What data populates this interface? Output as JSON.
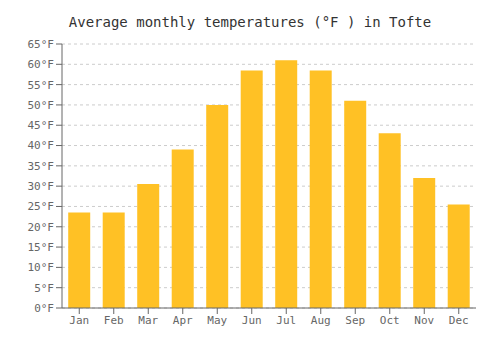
{
  "chart_data": {
    "type": "bar",
    "title": "Average monthly temperatures (°F ) in Tofte",
    "categories": [
      "Jan",
      "Feb",
      "Mar",
      "Apr",
      "May",
      "Jun",
      "Jul",
      "Aug",
      "Sep",
      "Oct",
      "Nov",
      "Dec"
    ],
    "values": [
      23.5,
      23.5,
      30.5,
      39.0,
      50.0,
      58.5,
      61.0,
      58.5,
      51.0,
      43.0,
      32.0,
      25.5
    ],
    "color": "#FFC125",
    "ylim": [
      0,
      65
    ],
    "yticks": [
      {
        "value": 0,
        "label": "0°F"
      },
      {
        "value": 5,
        "label": "5°F"
      },
      {
        "value": 10,
        "label": "10°F"
      },
      {
        "value": 15,
        "label": "15°F"
      },
      {
        "value": 20,
        "label": "20°F"
      },
      {
        "value": 25,
        "label": "25°F"
      },
      {
        "value": 30,
        "label": "30°F"
      },
      {
        "value": 35,
        "label": "35°F"
      },
      {
        "value": 40,
        "label": "40°F"
      },
      {
        "value": 45,
        "label": "45°F"
      },
      {
        "value": 50,
        "label": "50°F"
      },
      {
        "value": 55,
        "label": "55°F"
      },
      {
        "value": 60,
        "label": "60°F"
      },
      {
        "value": 65,
        "label": "65°F"
      }
    ],
    "grid": true
  }
}
